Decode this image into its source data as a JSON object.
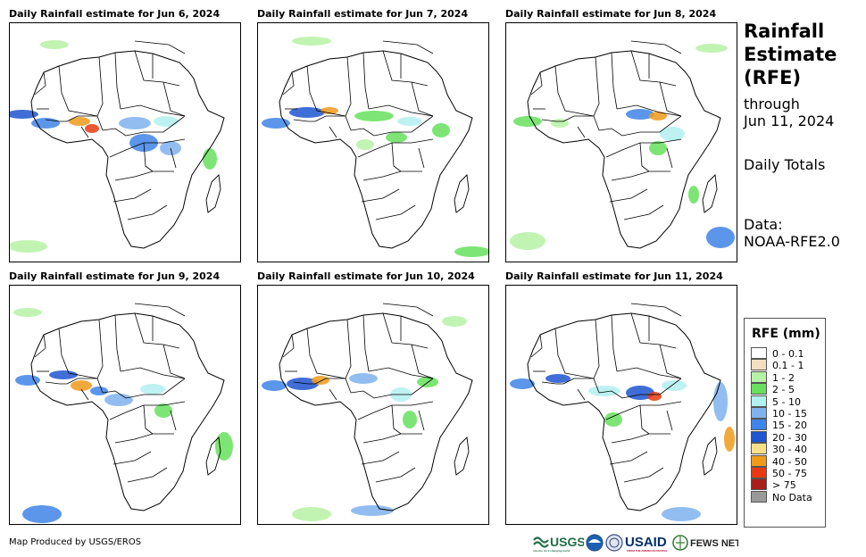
{
  "panels": [
    {
      "title": "Daily Rainfall estimate for Jun 6, 2024"
    },
    {
      "title": "Daily Rainfall estimate for Jun 7, 2024"
    },
    {
      "title": "Daily Rainfall estimate for Jun 8, 2024"
    },
    {
      "title": "Daily Rainfall estimate for Jun 9, 2024"
    },
    {
      "title": "Daily Rainfall estimate for Jun 10, 2024"
    },
    {
      "title": "Daily Rainfall estimate for Jun 11, 2024"
    }
  ],
  "side": {
    "title_line1": "Rainfall",
    "title_line2": "Estimate",
    "title_line3": "(RFE)",
    "through_label": "through",
    "through_date": "Jun 11, 2024",
    "period": "Daily Totals",
    "data_label": "Data:",
    "data_source": "NOAA-RFE2.0"
  },
  "legend": {
    "title": "RFE (mm)",
    "items": [
      {
        "label": "0 - 0.1",
        "color": "#ffffff"
      },
      {
        "label": "0.1 - 1",
        "color": "#f3dfc0"
      },
      {
        "label": "1 - 2",
        "color": "#b6f2a5"
      },
      {
        "label": "2 - 5",
        "color": "#66e05d"
      },
      {
        "label": "5 - 10",
        "color": "#b3f0f0"
      },
      {
        "label": "10 - 15",
        "color": "#7fb2ee"
      },
      {
        "label": "15 - 20",
        "color": "#3f84e8"
      },
      {
        "label": "20 - 30",
        "color": "#1f55d0"
      },
      {
        "label": "30 - 40",
        "color": "#f8df8a"
      },
      {
        "label": "40 - 50",
        "color": "#f09a1a"
      },
      {
        "label": "50 - 75",
        "color": "#e83a12"
      },
      {
        "label": "> 75",
        "color": "#a81d1d"
      },
      {
        "label": "No Data",
        "color": "#999999"
      }
    ]
  },
  "footer": {
    "credit": "Map Produced by USGS/EROS",
    "logos": {
      "usgs": "USGS",
      "usaid": "USAID",
      "fewsnet": "FEWS NET"
    }
  }
}
